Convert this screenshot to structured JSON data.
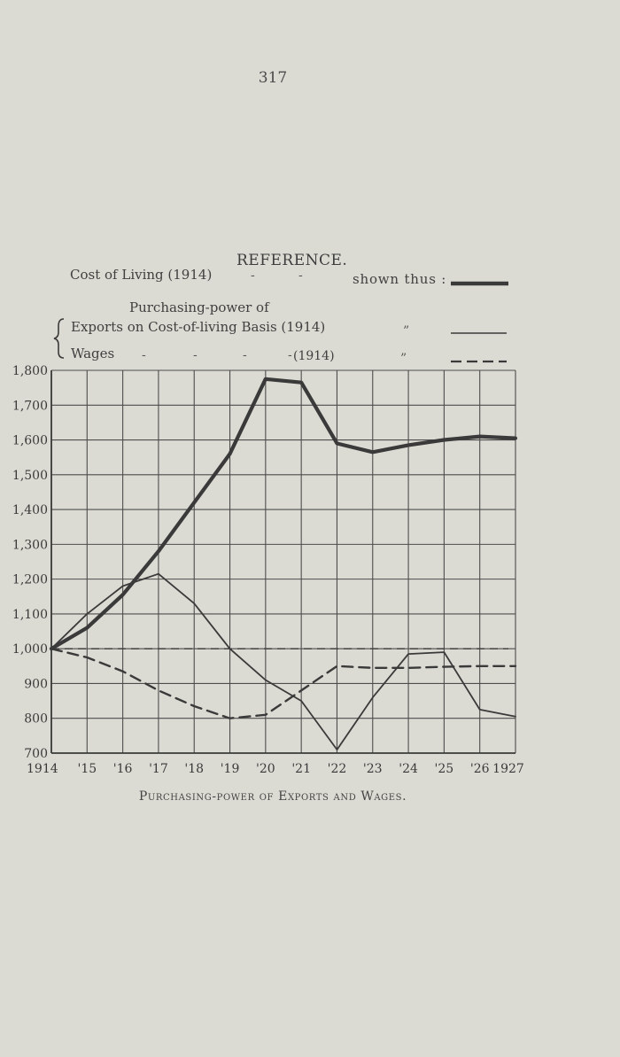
{
  "page_number": "317",
  "reference": {
    "title": "REFERENCE.",
    "cost_label": "Cost of Living (1914)",
    "shown_thus": "shown thus :",
    "purchasing_label": "Purchasing-power of",
    "exports_label": "Exports on Cost-of-living Basis (1914)",
    "wages_label": "Wages",
    "wages_year": "(1914)",
    "ditto": "”",
    "dash_mark": "-"
  },
  "caption": "Purchasing-power of Exports and Wages.",
  "colors": {
    "ink": "#3a3a3a",
    "grid": "#4d4d4d",
    "paper": "#dcdbd3"
  },
  "chart_data": {
    "type": "line",
    "title": "Purchasing-power of Exports and Wages.",
    "x": [
      "1914",
      "'15",
      "'16",
      "'17",
      "'18",
      "'19",
      "'20",
      "'21",
      "'22",
      "'23",
      "'24",
      "'25",
      "'26",
      "1927"
    ],
    "yticks": [
      "700",
      "800",
      "900",
      "1,000",
      "1,100",
      "1,200",
      "1,300",
      "1,400",
      "1,500",
      "1,600",
      "1,700",
      "1,800"
    ],
    "ylim": [
      700,
      1800
    ],
    "grid": true,
    "legend": "top",
    "baseline": 1000,
    "series": [
      {
        "name": "Cost of Living (1914)",
        "style": "thick",
        "values": [
          1000,
          1060,
          1155,
          1280,
          1420,
          1560,
          1775,
          1765,
          1590,
          1565,
          1585,
          1600,
          1610,
          1605
        ]
      },
      {
        "name": "Exports on Cost-of-living Basis (1914)",
        "style": "thin",
        "values": [
          1000,
          1100,
          1180,
          1215,
          1130,
          1000,
          910,
          850,
          710,
          860,
          985,
          990,
          825,
          805
        ]
      },
      {
        "name": "Wages",
        "style": "dashed",
        "values": [
          1000,
          975,
          935,
          880,
          835,
          800,
          810,
          880,
          950,
          945,
          945,
          948,
          950,
          950
        ]
      }
    ]
  }
}
